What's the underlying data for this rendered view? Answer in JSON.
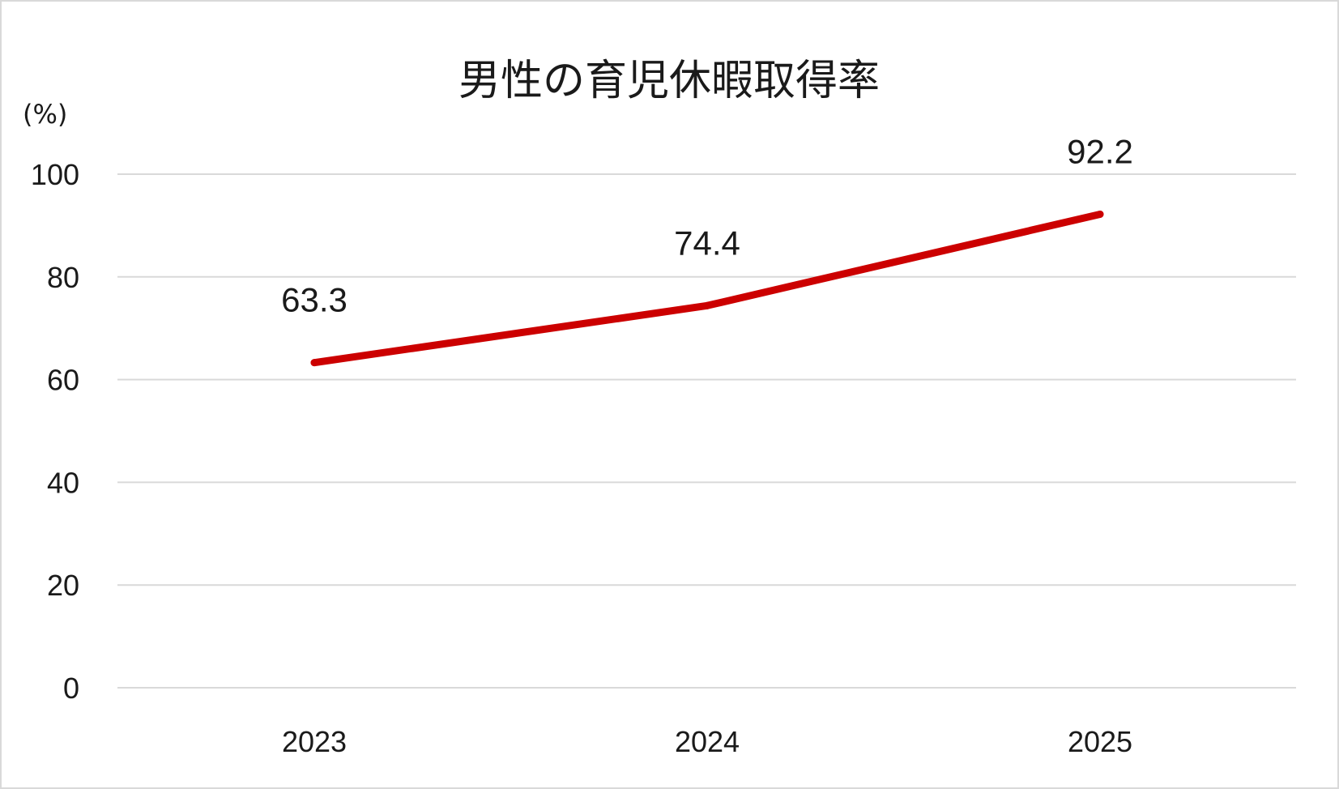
{
  "chart_data": {
    "type": "line",
    "title": "男性の育児休暇取得率",
    "unit_label": "(%)",
    "categories": [
      "2023",
      "2024",
      "2025"
    ],
    "series": [
      {
        "values": [
          63.3,
          74.4,
          92.2
        ],
        "color": "#cc0000"
      }
    ],
    "data_labels": [
      "63.3",
      "74.4",
      "92.2"
    ],
    "ylim": [
      0,
      100
    ],
    "yticks": [
      0,
      20,
      40,
      60,
      80,
      100
    ],
    "grid": true,
    "legend": "none"
  }
}
